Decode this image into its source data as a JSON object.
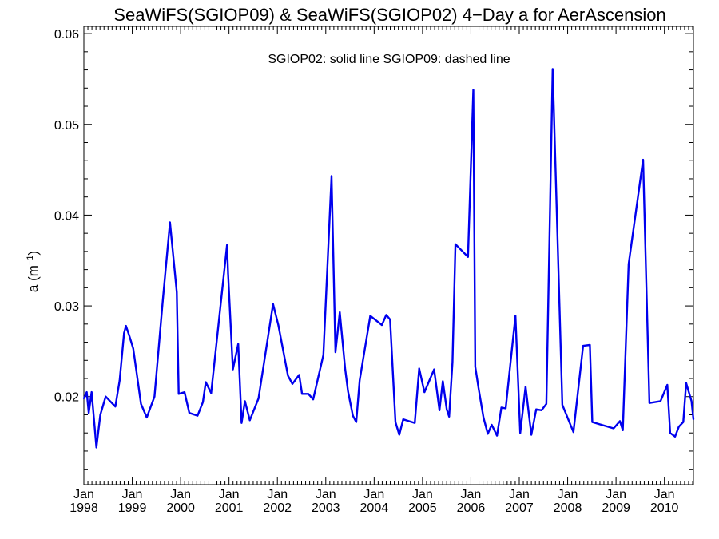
{
  "chart_data": {
    "type": "line",
    "title": "SeaWiFS(SGIOP09) & SeaWiFS(SGIOP02) 4−Day a for AerAscension",
    "annotation": "SGIOP02: solid line   SGIOP09: dashed line",
    "ylabel_base": "a (m",
    "ylabel_sup": "−1",
    "ylabel_end": ")",
    "xlabel": "",
    "xlim": [
      1998.0,
      2010.6
    ],
    "ylim": [
      0.0103,
      0.0608
    ],
    "y_ticks": [
      {
        "value": 0.02,
        "label": "0.02"
      },
      {
        "value": 0.03,
        "label": "0.03"
      },
      {
        "value": 0.04,
        "label": "0.04"
      },
      {
        "value": 0.05,
        "label": "0.05"
      },
      {
        "value": 0.06,
        "label": "0.06"
      }
    ],
    "x_ticks": [
      {
        "value": 1998.0,
        "month": "Jan",
        "year": "1998"
      },
      {
        "value": 1999.0,
        "month": "Jan",
        "year": "1999"
      },
      {
        "value": 2000.0,
        "month": "Jan",
        "year": "2000"
      },
      {
        "value": 2001.0,
        "month": "Jan",
        "year": "2001"
      },
      {
        "value": 2002.0,
        "month": "Jan",
        "year": "2002"
      },
      {
        "value": 2003.0,
        "month": "Jan",
        "year": "2003"
      },
      {
        "value": 2004.0,
        "month": "Jan",
        "year": "2004"
      },
      {
        "value": 2005.0,
        "month": "Jan",
        "year": "2005"
      },
      {
        "value": 2006.0,
        "month": "Jan",
        "year": "2006"
      },
      {
        "value": 2007.0,
        "month": "Jan",
        "year": "2007"
      },
      {
        "value": 2008.0,
        "month": "Jan",
        "year": "2008"
      },
      {
        "value": 2009.0,
        "month": "Jan",
        "year": "2009"
      },
      {
        "value": 2010.0,
        "month": "Jan",
        "year": "2010"
      }
    ],
    "grid": false,
    "series": [
      {
        "name": "SGIOP02",
        "style": "solid",
        "color": "#0000ee",
        "x": [
          1998.0,
          1998.06,
          1998.1,
          1998.16,
          1998.26,
          1998.34,
          1998.45,
          1998.65,
          1998.74,
          1998.83,
          1998.87,
          1998.94,
          1999.02,
          1999.18,
          1999.3,
          1999.46,
          1999.63,
          1999.78,
          1999.92,
          1999.96,
          2000.08,
          2000.18,
          2000.35,
          2000.46,
          2000.52,
          2000.63,
          2000.96,
          2000.98,
          2001.08,
          2001.19,
          2001.26,
          2001.33,
          2001.43,
          2001.61,
          2001.91,
          2002.02,
          2002.22,
          2002.31,
          2002.45,
          2002.51,
          2002.59,
          2002.64,
          2002.74,
          2002.95,
          2003.12,
          2003.2,
          2003.29,
          2003.4,
          2003.46,
          2003.56,
          2003.63,
          2003.7,
          2003.92,
          2004.16,
          2004.25,
          2004.33,
          2004.44,
          2004.52,
          2004.6,
          2004.84,
          2004.93,
          2005.04,
          2005.24,
          2005.35,
          2005.42,
          2005.5,
          2005.55,
          2005.62,
          2005.68,
          2005.94,
          2006.05,
          2006.09,
          2006.16,
          2006.26,
          2006.35,
          2006.43,
          2006.54,
          2006.63,
          2006.72,
          2006.92,
          2007.02,
          2007.13,
          2007.25,
          2007.35,
          2007.46,
          2007.56,
          2007.69,
          2007.89,
          2008.12,
          2008.32,
          2008.46,
          2008.51,
          2008.95,
          2009.08,
          2009.14,
          2009.26,
          2009.56,
          2009.69,
          2009.92,
          2010.06,
          2010.12,
          2010.22,
          2010.3,
          2010.39,
          2010.45,
          2010.56,
          2010.6
        ],
        "y": [
          0.0198,
          0.0205,
          0.0182,
          0.0205,
          0.0144,
          0.018,
          0.02,
          0.0189,
          0.0218,
          0.027,
          0.0278,
          0.0267,
          0.0253,
          0.0192,
          0.0177,
          0.02,
          0.0305,
          0.0392,
          0.0315,
          0.0203,
          0.0205,
          0.0182,
          0.0179,
          0.0194,
          0.0216,
          0.0204,
          0.0367,
          0.0336,
          0.023,
          0.0258,
          0.0171,
          0.0195,
          0.0174,
          0.0198,
          0.0302,
          0.0279,
          0.0223,
          0.0214,
          0.0224,
          0.0203,
          0.0203,
          0.0203,
          0.0197,
          0.0246,
          0.0443,
          0.0249,
          0.0293,
          0.0231,
          0.0206,
          0.0179,
          0.0172,
          0.0218,
          0.0289,
          0.0279,
          0.029,
          0.0285,
          0.0172,
          0.0158,
          0.0175,
          0.0171,
          0.0231,
          0.0205,
          0.023,
          0.0185,
          0.0217,
          0.0186,
          0.0178,
          0.0238,
          0.0368,
          0.0354,
          0.0538,
          0.0233,
          0.0209,
          0.0177,
          0.0159,
          0.0169,
          0.0157,
          0.0188,
          0.0187,
          0.0289,
          0.016,
          0.0211,
          0.0158,
          0.0186,
          0.0185,
          0.0192,
          0.0561,
          0.0191,
          0.0161,
          0.0256,
          0.0257,
          0.0172,
          0.0165,
          0.0173,
          0.0163,
          0.0346,
          0.0461,
          0.0193,
          0.0195,
          0.0213,
          0.016,
          0.0156,
          0.0167,
          0.0172,
          0.0215,
          0.0195,
          0.0175
        ]
      }
    ]
  }
}
